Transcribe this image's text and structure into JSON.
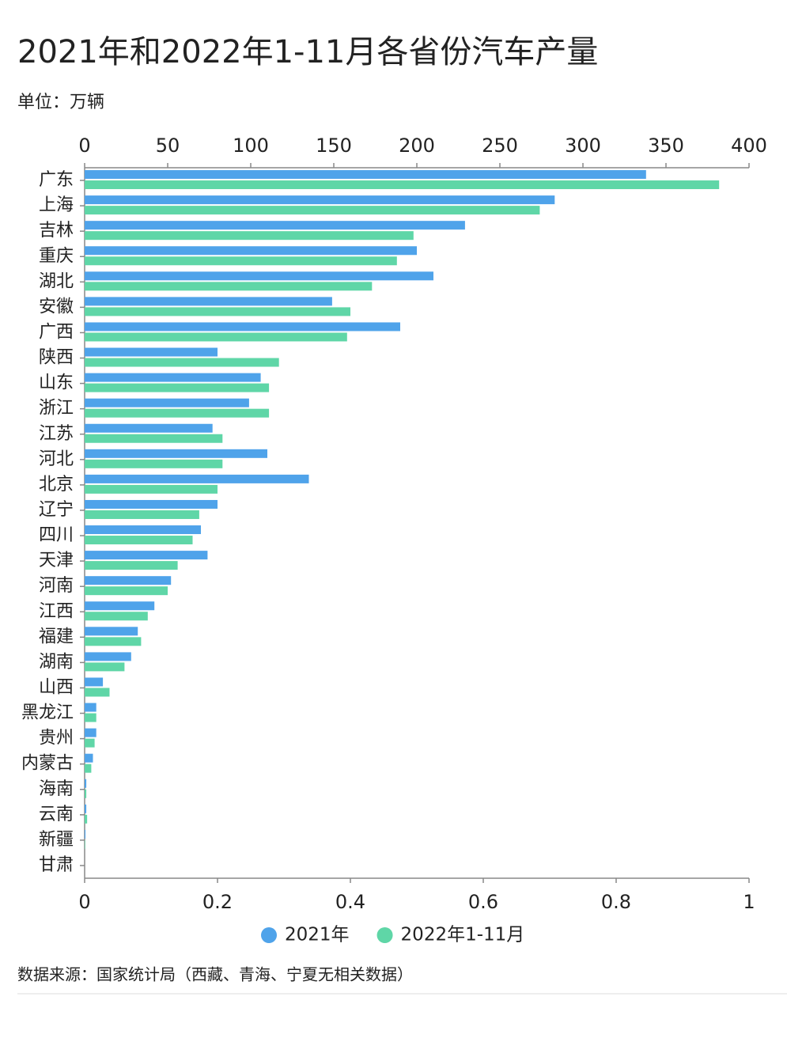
{
  "chart_data": {
    "type": "bar",
    "orientation": "horizontal",
    "title": "2021年和2022年1-11月各省份汽车产量",
    "subtitle": "单位：万辆",
    "source": "数据来源：国家统计局（西藏、青海、宁夏无相关数据）",
    "categories": [
      "广东",
      "上海",
      "吉林",
      "重庆",
      "湖北",
      "安徽",
      "广西",
      "陕西",
      "山东",
      "浙江",
      "江苏",
      "河北",
      "北京",
      "辽宁",
      "四川",
      "天津",
      "河南",
      "江西",
      "福建",
      "湖南",
      "山西",
      "黑龙江",
      "贵州",
      "内蒙古",
      "海南",
      "云南",
      "新疆",
      "甘肃"
    ],
    "series": [
      {
        "name": "2021年",
        "color": "#4fa3ea",
        "values": [
          338,
          283,
          229,
          200,
          210,
          149,
          190,
          80,
          106,
          99,
          77,
          110,
          135,
          80,
          70,
          74,
          52,
          42,
          32,
          28,
          11,
          7,
          7,
          5,
          1,
          1,
          0.5,
          0
        ]
      },
      {
        "name": "2022年1-11月",
        "color": "#5fd6a7",
        "values": [
          382,
          274,
          198,
          188,
          173,
          160,
          158,
          117,
          111,
          111,
          83,
          83,
          80,
          69,
          65,
          56,
          50,
          38,
          34,
          24,
          15,
          7,
          6,
          4,
          1,
          1.5,
          0.3,
          0
        ]
      }
    ],
    "xlim": [
      0,
      400
    ],
    "xticks": [
      0,
      50,
      100,
      150,
      200,
      250,
      300,
      350,
      400
    ],
    "x2lim": [
      0,
      1
    ],
    "x2ticks": [
      0,
      0.2,
      0.4,
      0.6,
      0.8,
      1
    ]
  }
}
